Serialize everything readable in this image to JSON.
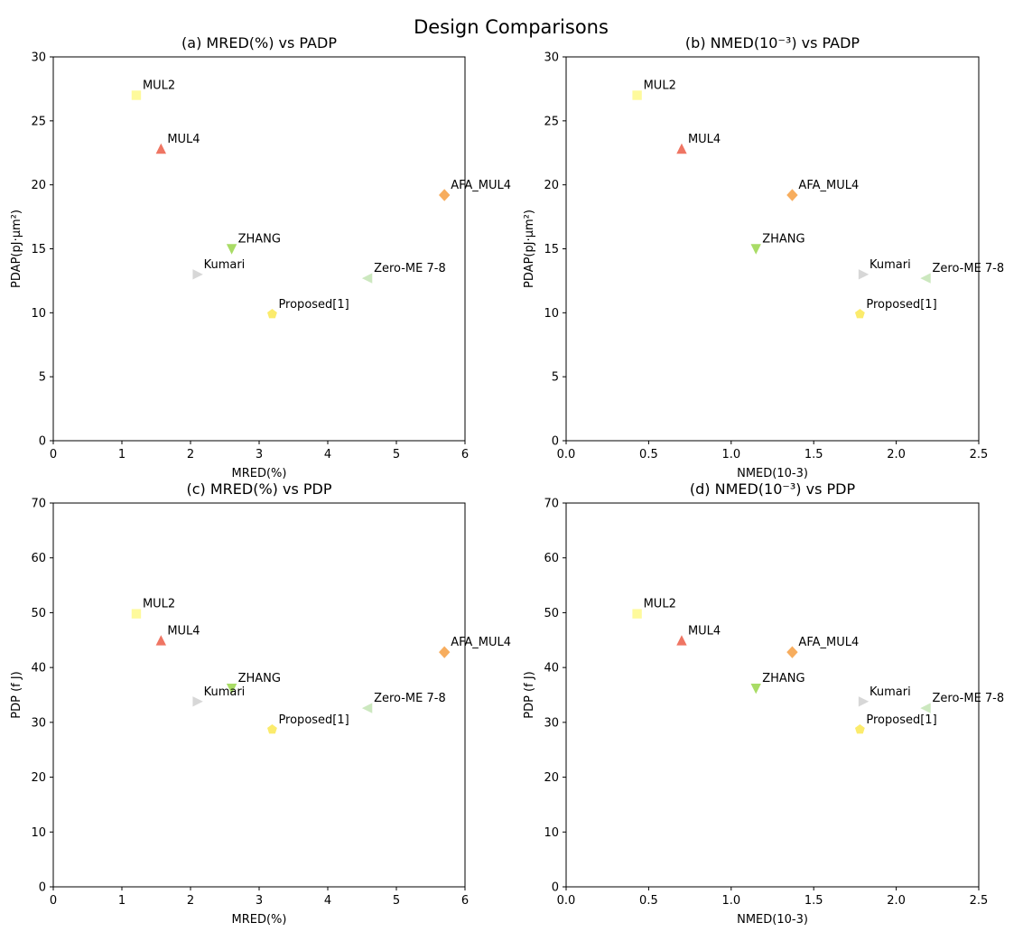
{
  "suptitle": "Design Comparisons",
  "chart_data": [
    {
      "type": "scatter",
      "title": "(a) MRED(%) vs PADP",
      "xlabel": "MRED(%)",
      "ylabel": "PDAP(pJ·μm²)",
      "xlim": [
        0,
        6
      ],
      "ylim": [
        0,
        30
      ],
      "xticks": [
        "0",
        "1",
        "2",
        "3",
        "4",
        "5",
        "6"
      ],
      "yticks": [
        "0",
        "5",
        "10",
        "15",
        "20",
        "25",
        "30"
      ],
      "grid": false,
      "points": [
        {
          "label": "MUL2",
          "x": 1.21,
          "y": 27.0,
          "marker": "square",
          "color": "#fefa9c"
        },
        {
          "label": "MUL4",
          "x": 1.57,
          "y": 22.8,
          "marker": "triangle-up",
          "color": "#ef7563"
        },
        {
          "label": "AFA_MUL4",
          "x": 5.7,
          "y": 19.2,
          "marker": "diamond",
          "color": "#f7ad5e"
        },
        {
          "label": "ZHANG",
          "x": 2.6,
          "y": 15.0,
          "marker": "triangle-down",
          "color": "#a9dc66"
        },
        {
          "label": "Kumari",
          "x": 2.1,
          "y": 13.0,
          "marker": "triangle-right",
          "color": "#d7d7d7"
        },
        {
          "label": "Zero-ME 7-8",
          "x": 4.58,
          "y": 12.7,
          "marker": "triangle-left",
          "color": "#cce8bf"
        },
        {
          "label": "Proposed[1]",
          "x": 3.19,
          "y": 9.9,
          "marker": "pentagon",
          "color": "#fbeb6c"
        }
      ]
    },
    {
      "type": "scatter",
      "title": "(b) NMED(10⁻³) vs PADP",
      "xlabel": "NMED(10-3)",
      "ylabel": "PDAP(pJ·μm²)",
      "xlim": [
        0,
        2.5
      ],
      "ylim": [
        0,
        30
      ],
      "xticks": [
        "0.0",
        "0.5",
        "1.0",
        "1.5",
        "2.0",
        "2.5"
      ],
      "yticks": [
        "0",
        "5",
        "10",
        "15",
        "20",
        "25",
        "30"
      ],
      "grid": false,
      "points": [
        {
          "label": "MUL2",
          "x": 0.43,
          "y": 27.0,
          "marker": "square",
          "color": "#fefa9c"
        },
        {
          "label": "MUL4",
          "x": 0.7,
          "y": 22.8,
          "marker": "triangle-up",
          "color": "#ef7563"
        },
        {
          "label": "AFA_MUL4",
          "x": 1.37,
          "y": 19.2,
          "marker": "diamond",
          "color": "#f7ad5e"
        },
        {
          "label": "ZHANG",
          "x": 1.15,
          "y": 15.0,
          "marker": "triangle-down",
          "color": "#a9dc66"
        },
        {
          "label": "Kumari",
          "x": 1.8,
          "y": 13.0,
          "marker": "triangle-right",
          "color": "#d7d7d7"
        },
        {
          "label": "Zero-ME 7-8",
          "x": 2.18,
          "y": 12.7,
          "marker": "triangle-left",
          "color": "#cce8bf"
        },
        {
          "label": "Proposed[1]",
          "x": 1.78,
          "y": 9.9,
          "marker": "pentagon",
          "color": "#fbeb6c"
        }
      ]
    },
    {
      "type": "scatter",
      "title": "(c) MRED(%) vs PDP",
      "xlabel": "MRED(%)",
      "ylabel": "PDP (f J)",
      "xlim": [
        0,
        6
      ],
      "ylim": [
        0,
        70
      ],
      "xticks": [
        "0",
        "1",
        "2",
        "3",
        "4",
        "5",
        "6"
      ],
      "yticks": [
        "0",
        "10",
        "20",
        "30",
        "40",
        "50",
        "60",
        "70"
      ],
      "grid": false,
      "points": [
        {
          "label": "MUL2",
          "x": 1.21,
          "y": 49.8,
          "marker": "square",
          "color": "#fefa9c"
        },
        {
          "label": "MUL4",
          "x": 1.57,
          "y": 44.9,
          "marker": "triangle-up",
          "color": "#ef7563"
        },
        {
          "label": "AFA_MUL4",
          "x": 5.7,
          "y": 42.8,
          "marker": "diamond",
          "color": "#f7ad5e"
        },
        {
          "label": "ZHANG",
          "x": 2.6,
          "y": 36.2,
          "marker": "triangle-down",
          "color": "#a9dc66"
        },
        {
          "label": "Kumari",
          "x": 2.1,
          "y": 33.8,
          "marker": "triangle-right",
          "color": "#d7d7d7"
        },
        {
          "label": "Zero-ME 7-8",
          "x": 4.58,
          "y": 32.6,
          "marker": "triangle-left",
          "color": "#cce8bf"
        },
        {
          "label": "Proposed[1]",
          "x": 3.19,
          "y": 28.7,
          "marker": "pentagon",
          "color": "#fbeb6c"
        }
      ]
    },
    {
      "type": "scatter",
      "title": "(d) NMED(10⁻³) vs PDP",
      "xlabel": "NMED(10-3)",
      "ylabel": "PDP (f J)",
      "xlim": [
        0,
        2.5
      ],
      "ylim": [
        0,
        70
      ],
      "xticks": [
        "0.0",
        "0.5",
        "1.0",
        "1.5",
        "2.0",
        "2.5"
      ],
      "yticks": [
        "0",
        "10",
        "20",
        "30",
        "40",
        "50",
        "60",
        "70"
      ],
      "grid": false,
      "points": [
        {
          "label": "MUL2",
          "x": 0.43,
          "y": 49.8,
          "marker": "square",
          "color": "#fefa9c"
        },
        {
          "label": "MUL4",
          "x": 0.7,
          "y": 44.9,
          "marker": "triangle-up",
          "color": "#ef7563"
        },
        {
          "label": "AFA_MUL4",
          "x": 1.37,
          "y": 42.8,
          "marker": "diamond",
          "color": "#f7ad5e"
        },
        {
          "label": "ZHANG",
          "x": 1.15,
          "y": 36.2,
          "marker": "triangle-down",
          "color": "#a9dc66"
        },
        {
          "label": "Kumari",
          "x": 1.8,
          "y": 33.8,
          "marker": "triangle-right",
          "color": "#d7d7d7"
        },
        {
          "label": "Zero-ME 7-8",
          "x": 2.18,
          "y": 32.6,
          "marker": "triangle-left",
          "color": "#cce8bf"
        },
        {
          "label": "Proposed[1]",
          "x": 1.78,
          "y": 28.7,
          "marker": "pentagon",
          "color": "#fbeb6c"
        }
      ]
    }
  ]
}
